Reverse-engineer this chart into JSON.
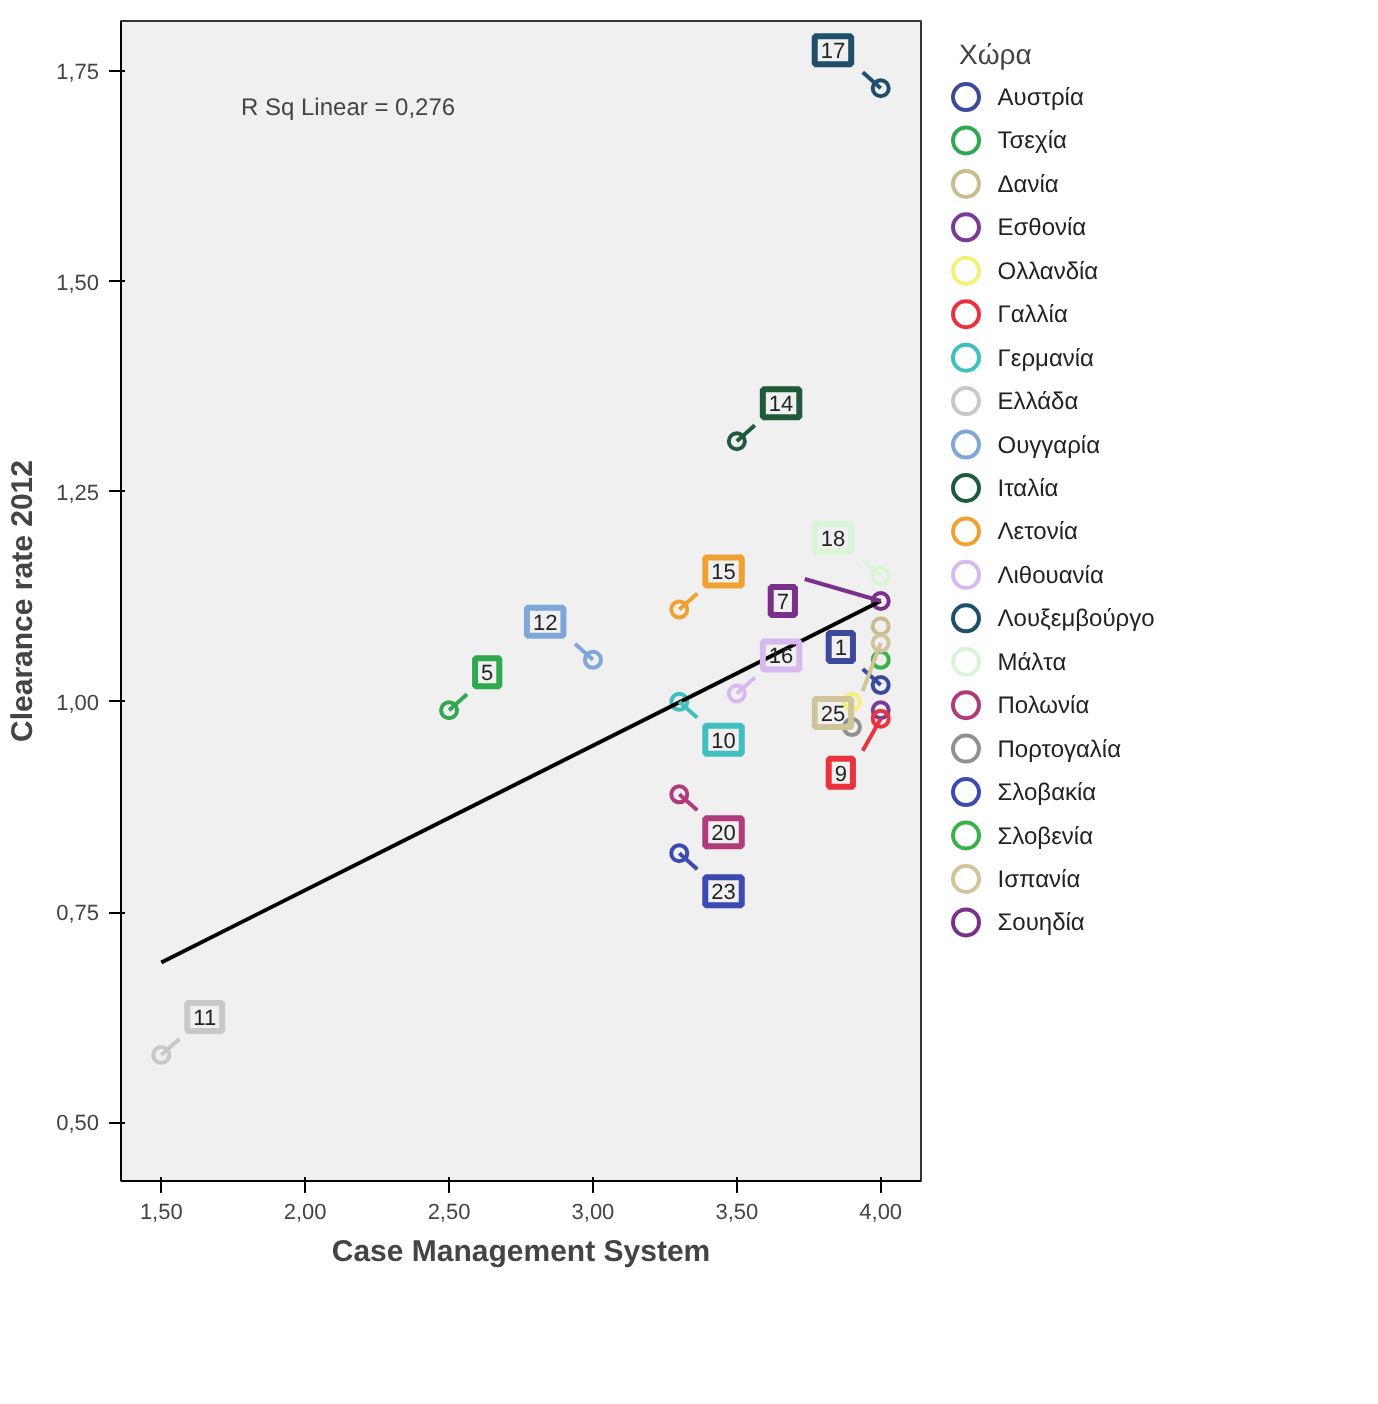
{
  "chart_data": {
    "type": "scatter",
    "xlabel": "Case Management System",
    "ylabel": "Clearance rate 2012",
    "legend_title": "Χώρα",
    "legend": "right",
    "marker": "circle",
    "grid": false,
    "annotations": [
      "R Sq Linear = 0,276",
      {
        "text": "1",
        "x": 4.0,
        "y": 1.02
      },
      {
        "text": "5",
        "x": 2.5,
        "y": 0.99
      },
      {
        "text": "9",
        "x": 4.0,
        "y": 0.98
      },
      {
        "text": "10",
        "x": 3.3,
        "y": 1.0
      },
      {
        "text": "11",
        "x": 1.5,
        "y": 0.58
      },
      {
        "text": "12",
        "x": 3.0,
        "y": 1.05
      },
      {
        "text": "14",
        "x": 3.5,
        "y": 1.31
      },
      {
        "text": "15",
        "x": 3.3,
        "y": 1.11
      },
      {
        "text": "16",
        "x": 3.5,
        "y": 1.01
      },
      {
        "text": "17",
        "x": 4.0,
        "y": 1.73
      },
      {
        "text": "18",
        "x": 4.0,
        "y": 1.15
      },
      {
        "text": "20",
        "x": 3.3,
        "y": 0.89
      },
      {
        "text": "23",
        "x": 3.3,
        "y": 0.82
      },
      {
        "text": "25",
        "x": 4.0,
        "y": 1.07
      },
      {
        "text": "7",
        "x": 4.0,
        "y": 1.12
      }
    ],
    "xlim": [
      1.36,
      4.14
    ],
    "ylim": [
      0.43,
      1.81
    ],
    "xticks": [
      {
        "value": 1.5,
        "label": "1,50"
      },
      {
        "value": 2.0,
        "label": "2,00"
      },
      {
        "value": 2.5,
        "label": "2,50"
      },
      {
        "value": 3.0,
        "label": "3,00"
      },
      {
        "value": 3.5,
        "label": "3,50"
      },
      {
        "value": 4.0,
        "label": "4,00"
      }
    ],
    "yticks": [
      {
        "value": 0.5,
        "label": "0,50"
      },
      {
        "value": 0.75,
        "label": "0,75"
      },
      {
        "value": 1.0,
        "label": "1,00"
      },
      {
        "value": 1.25,
        "label": "1,25"
      },
      {
        "value": 1.5,
        "label": "1,50"
      },
      {
        "value": 1.75,
        "label": "1,75"
      }
    ],
    "series": [
      {
        "name": "Αυστρία",
        "color": "#3b4a9a",
        "x": [
          4.0
        ],
        "values": [
          1.02
        ]
      },
      {
        "name": "Τσεχία",
        "color": "#2fa84f",
        "x": [
          2.5
        ],
        "values": [
          0.99
        ]
      },
      {
        "name": "Δανία",
        "color": "#c8bd8f",
        "x": [
          4.0
        ],
        "values": [
          1.09
        ]
      },
      {
        "name": "Εσθονία",
        "color": "#7b3a96",
        "x": [
          4.0
        ],
        "values": [
          0.99
        ]
      },
      {
        "name": "Ολλανδία",
        "color": "#f5f07a",
        "x": [
          3.9
        ],
        "values": [
          1.0
        ]
      },
      {
        "name": "Γαλλία",
        "color": "#e8333f",
        "x": [
          4.0
        ],
        "values": [
          0.98
        ]
      },
      {
        "name": "Γερμανία",
        "color": "#3fbfbf",
        "x": [
          3.3
        ],
        "values": [
          1.0
        ]
      },
      {
        "name": "Ελλάδα",
        "color": "#c8c8c8",
        "x": [
          1.5
        ],
        "values": [
          0.58
        ]
      },
      {
        "name": "Ουγγαρία",
        "color": "#7ea6d8",
        "x": [
          3.0
        ],
        "values": [
          1.05
        ]
      },
      {
        "name": "Ιταλία",
        "color": "#1f5a3a",
        "x": [
          3.5
        ],
        "values": [
          1.31
        ]
      },
      {
        "name": "Λετονία",
        "color": "#f0a030",
        "x": [
          3.3
        ],
        "values": [
          1.11
        ]
      },
      {
        "name": "Λιθουανία",
        "color": "#d8b8f0",
        "x": [
          3.5
        ],
        "values": [
          1.01
        ]
      },
      {
        "name": "Λουξεμβούργο",
        "color": "#1f4f6a",
        "x": [
          4.0
        ],
        "values": [
          1.73
        ]
      },
      {
        "name": "Μάλτα",
        "color": "#d8f5d8",
        "x": [
          4.0
        ],
        "values": [
          1.15
        ]
      },
      {
        "name": "Πολωνία",
        "color": "#b03a7a",
        "x": [
          3.3
        ],
        "values": [
          0.89
        ]
      },
      {
        "name": "Πορτογαλία",
        "color": "#909090",
        "x": [
          3.9
        ],
        "values": [
          0.97
        ]
      },
      {
        "name": "Σλοβακία",
        "color": "#3a4ab0",
        "x": [
          3.3
        ],
        "values": [
          0.82
        ]
      },
      {
        "name": "Σλοβενία",
        "color": "#3ab04a",
        "x": [
          4.0
        ],
        "values": [
          1.05
        ]
      },
      {
        "name": "Ισπανία",
        "color": "#cfc49a",
        "x": [
          4.0
        ],
        "values": [
          1.07
        ]
      },
      {
        "name": "Σουηδία",
        "color": "#7a2f8a",
        "x": [
          4.0
        ],
        "values": [
          1.12
        ]
      },
      {
        "type": "line",
        "marker": "none",
        "color": "#000000",
        "x": [
          1.5,
          4.0
        ],
        "values": [
          0.69,
          1.12
        ]
      }
    ]
  }
}
